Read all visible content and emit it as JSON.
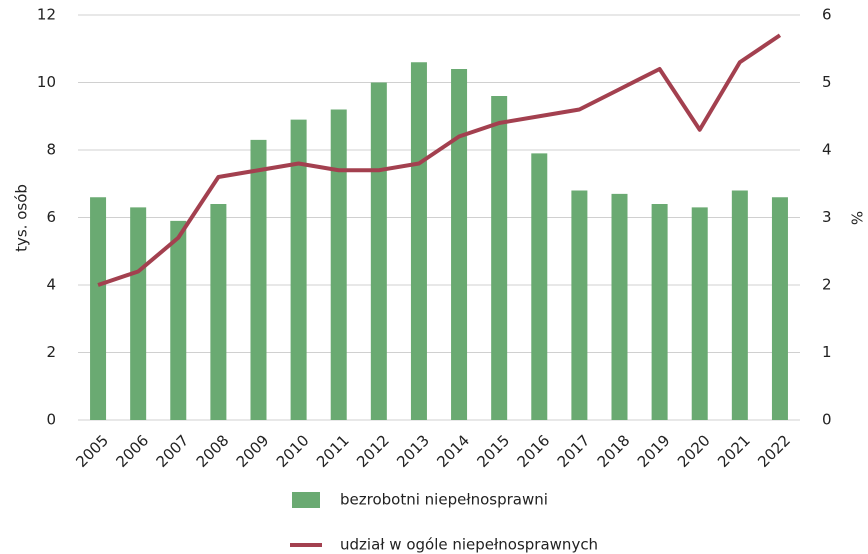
{
  "chart_data": {
    "type": "bar_line",
    "categories": [
      "2005",
      "2006",
      "2007",
      "2008",
      "2009",
      "2010",
      "2011",
      "2012",
      "2013",
      "2014",
      "2015",
      "2016",
      "2017",
      "2018",
      "2019",
      "2020",
      "2021",
      "2022"
    ],
    "series": [
      {
        "name": "bezrobotni niepełnosprawni",
        "color": "#6aaa72",
        "type": "bar",
        "axis": "y",
        "values": [
          6.6,
          6.3,
          5.9,
          6.4,
          8.3,
          8.9,
          9.2,
          10.0,
          10.6,
          10.4,
          9.6,
          7.9,
          6.8,
          6.7,
          6.4,
          6.3,
          6.8,
          6.6
        ]
      },
      {
        "name": "udział w ogóle niepełnosprawnych",
        "color": "#a3404f",
        "type": "line",
        "axis": "y2",
        "values": [
          2.0,
          2.2,
          2.7,
          3.6,
          3.7,
          3.8,
          3.7,
          3.7,
          3.8,
          4.2,
          4.4,
          4.5,
          4.6,
          4.9,
          5.2,
          4.3,
          5.3,
          5.7
        ]
      }
    ],
    "y_label": "tys. osób",
    "y2_label": "%",
    "ylim": [
      0,
      12
    ],
    "yticks": [
      0,
      2,
      4,
      6,
      8,
      10,
      12
    ],
    "y2lim": [
      0,
      6
    ],
    "y2ticks": [
      0,
      1,
      2,
      3,
      4,
      5,
      6
    ],
    "grid": true
  }
}
